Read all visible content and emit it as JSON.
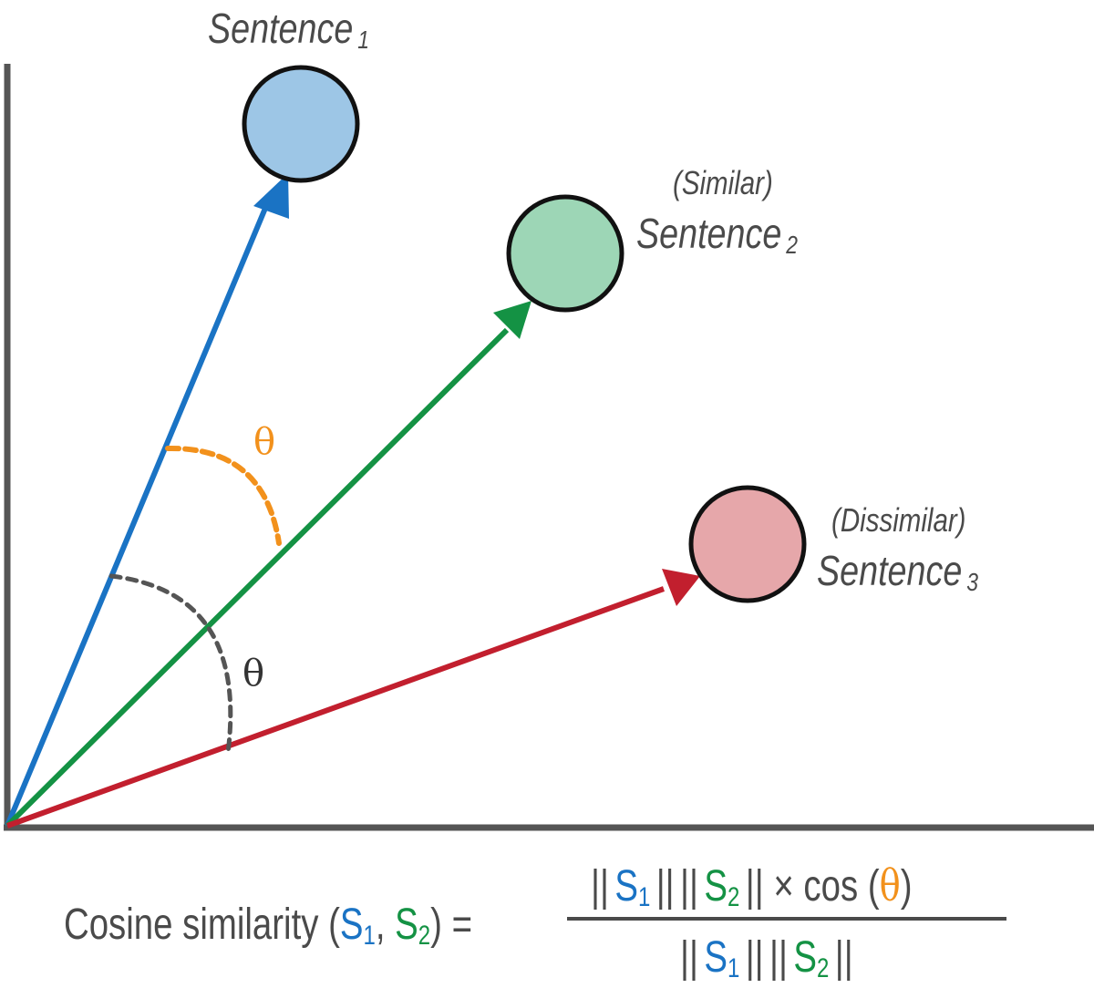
{
  "labels": {
    "s1": {
      "name": "Sentence",
      "sub": "1"
    },
    "s2": {
      "tag": "(Similar)",
      "name": "Sentence",
      "sub": "2"
    },
    "s3": {
      "tag": "(Dissimilar)",
      "name": "Sentence",
      "sub": "3"
    }
  },
  "angles": {
    "similar": "θ",
    "dissimilar": "θ"
  },
  "formula": {
    "lhs_text": "Cosine similarity (",
    "s": "S",
    "one": "1",
    "two": "2",
    "comma": ", ",
    "close_eq": ") =",
    "bars": "||",
    "times_cos": " × cos (",
    "theta": "θ",
    "close": ")"
  },
  "colors": {
    "s1": "#1a73c4",
    "s2": "#149244",
    "s3": "#c21f2e",
    "s1_fill": "#9dc6e6",
    "s2_fill": "#9dd6b6",
    "s3_fill": "#e6a7aa",
    "theta_similar": "#f2911c",
    "theta_dissimilar": "#4a4a4a",
    "axis": "#555555"
  }
}
